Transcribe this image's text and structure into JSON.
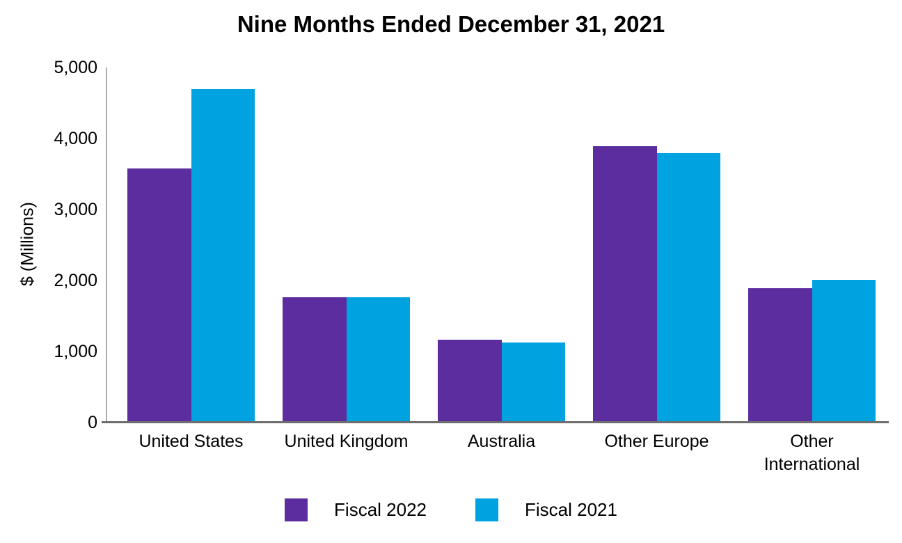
{
  "chart_data": {
    "type": "bar",
    "title": "Nine Months Ended December 31, 2021",
    "categories": [
      "United States",
      "United Kingdom",
      "Australia",
      "Other Europe",
      "Other International"
    ],
    "series": [
      {
        "name": "Fiscal 2022",
        "color": "#5C2D9E",
        "values": [
          3580,
          1760,
          1170,
          3890,
          1890
        ]
      },
      {
        "name": "Fiscal 2021",
        "color": "#00A3E0",
        "values": [
          4700,
          1760,
          1130,
          3790,
          2010
        ]
      }
    ],
    "xlabel": "",
    "ylabel": "$ (Millions)",
    "ylim": [
      0,
      5000
    ],
    "yticks": [
      {
        "value": 0,
        "label": "0"
      },
      {
        "value": 1000,
        "label": "1,000"
      },
      {
        "value": 2000,
        "label": "2,000"
      },
      {
        "value": 3000,
        "label": "3,000"
      },
      {
        "value": 4000,
        "label": "4,000"
      },
      {
        "value": 5000,
        "label": "5,000"
      }
    ],
    "grid": false,
    "legend_position": "bottom",
    "background": "#FFFFFF",
    "text_color": "#000000",
    "axis_colors": {
      "y_axis_line": "#ABABAB",
      "x_axis_line": "#6E6E6E"
    }
  }
}
